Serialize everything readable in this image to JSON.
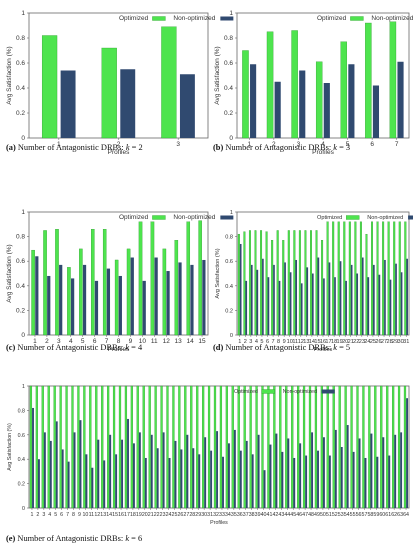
{
  "captions": [
    {
      "label": "(a)",
      "text": "Number of Antagonistic DRBs:",
      "kvar": "k",
      "kval": "= 2"
    },
    {
      "label": "(b)",
      "text": "Number of Antagonistic DRBs:",
      "kvar": "k",
      "kval": "= 3"
    },
    {
      "label": "(c)",
      "text": "Number of Antagonistic DRBs:",
      "kvar": "k",
      "kval": "= 4"
    },
    {
      "label": "(d)",
      "text": "Number of Antagonistic DRBs:",
      "kvar": "k",
      "kval": "= 5"
    },
    {
      "label": "(e)",
      "text": "Number of Antagonistic DRBs:",
      "kvar": "k",
      "kval": "= 6"
    }
  ],
  "colors": {
    "optimized": "#4ee44e",
    "optimized_edge": "#1e8c1e",
    "non_optimized": "#304a70",
    "axis": "#666666",
    "grid": "#dddddd",
    "text": "#333333"
  },
  "chart_data": [
    {
      "type": "bar",
      "xlabel": "Profiles",
      "ylabel": "Avg Satisfaction (%)",
      "ylim": [
        0,
        1
      ],
      "yticks": [
        "0",
        "0.2",
        "0.4",
        "0.6",
        "0.8",
        "1"
      ],
      "grid": false,
      "legend_position": "top-right",
      "categories": [
        "1",
        "2",
        "3"
      ],
      "series": [
        {
          "name": "Optimized",
          "values": [
            0.82,
            0.72,
            0.89
          ]
        },
        {
          "name": "Non-optimized",
          "values": [
            0.54,
            0.55,
            0.51
          ]
        }
      ]
    },
    {
      "type": "bar",
      "xlabel": "Profiles",
      "ylabel": "Avg Satisfaction (%)",
      "ylim": [
        0,
        1
      ],
      "yticks": [
        "0",
        "0.2",
        "0.4",
        "0.6",
        "0.8",
        "1"
      ],
      "grid": false,
      "legend_position": "top-right",
      "categories": [
        "1",
        "2",
        "3",
        "4",
        "5",
        "6",
        "7"
      ],
      "series": [
        {
          "name": "Optimized",
          "values": [
            0.7,
            0.85,
            0.86,
            0.61,
            0.77,
            0.92,
            0.93
          ]
        },
        {
          "name": "Non-optimized",
          "values": [
            0.59,
            0.45,
            0.54,
            0.44,
            0.59,
            0.42,
            0.61
          ]
        }
      ]
    },
    {
      "type": "bar",
      "xlabel": "Profiles",
      "ylabel": "Avg Satisfaction (%)",
      "ylim": [
        0,
        1
      ],
      "yticks": [
        "0",
        "0.2",
        "0.4",
        "0.6",
        "0.8",
        "1"
      ],
      "grid": false,
      "legend_position": "top-right",
      "categories": [
        "1",
        "2",
        "3",
        "4",
        "5",
        "6",
        "7",
        "8",
        "9",
        "10",
        "11",
        "12",
        "13",
        "14",
        "15"
      ],
      "series": [
        {
          "name": "Optimized",
          "values": [
            0.69,
            0.85,
            0.86,
            0.55,
            0.7,
            0.86,
            0.86,
            0.61,
            0.7,
            0.92,
            0.92,
            0.7,
            0.77,
            0.92,
            0.93
          ]
        },
        {
          "name": "Non-optimized",
          "values": [
            0.64,
            0.48,
            0.57,
            0.46,
            0.57,
            0.44,
            0.54,
            0.48,
            0.63,
            0.44,
            0.63,
            0.52,
            0.59,
            0.57,
            0.61
          ]
        }
      ]
    },
    {
      "type": "bar",
      "xlabel": "Profiles",
      "ylabel": "Avg Satisfaction (%)",
      "ylim": [
        0,
        1
      ],
      "yticks": [
        "0",
        "0.2",
        "0.4",
        "0.6",
        "0.8",
        "1"
      ],
      "grid": false,
      "legend_position": "top-right",
      "categories": [
        "1",
        "2",
        "3",
        "4",
        "5",
        "6",
        "7",
        "8",
        "9",
        "10",
        "11",
        "12",
        "13",
        "14",
        "15",
        "16",
        "17",
        "18",
        "19",
        "20",
        "21",
        "22",
        "23",
        "24",
        "25",
        "26",
        "27",
        "28",
        "29",
        "30",
        "31"
      ],
      "series": [
        {
          "name": "Optimized",
          "values": [
            0.82,
            0.84,
            0.85,
            0.85,
            0.85,
            0.84,
            0.77,
            0.85,
            0.77,
            0.85,
            0.85,
            0.85,
            0.85,
            0.85,
            0.85,
            0.77,
            0.92,
            0.92,
            0.92,
            0.92,
            0.92,
            0.92,
            0.92,
            0.82,
            0.92,
            0.92,
            0.92,
            0.92,
            0.92,
            0.92,
            0.92
          ]
        },
        {
          "name": "Non-optimized",
          "values": [
            0.74,
            0.44,
            0.57,
            0.53,
            0.62,
            0.47,
            0.57,
            0.44,
            0.59,
            0.51,
            0.61,
            0.42,
            0.55,
            0.5,
            0.63,
            0.46,
            0.59,
            0.47,
            0.6,
            0.44,
            0.57,
            0.5,
            0.63,
            0.47,
            0.57,
            0.49,
            0.61,
            0.45,
            0.58,
            0.51,
            0.62
          ]
        }
      ]
    },
    {
      "type": "bar",
      "xlabel": "Profiles",
      "ylabel": "Avg Satisfaction (%)",
      "ylim": [
        0,
        1
      ],
      "yticks": [
        "0",
        "0.2",
        "0.4",
        "0.6",
        "0.8",
        "1"
      ],
      "grid": false,
      "legend_position": "top-right",
      "categories": [
        "1",
        "2",
        "3",
        "4",
        "5",
        "6",
        "7",
        "8",
        "9",
        "10",
        "11",
        "12",
        "13",
        "14",
        "15",
        "16",
        "17",
        "18",
        "19",
        "20",
        "21",
        "22",
        "23",
        "24",
        "25",
        "26",
        "27",
        "28",
        "29",
        "30",
        "31",
        "32",
        "33",
        "34",
        "35",
        "36",
        "37",
        "38",
        "39",
        "40",
        "41",
        "42",
        "43",
        "44",
        "45",
        "46",
        "47",
        "48",
        "49",
        "50",
        "51",
        "52",
        "53",
        "54",
        "55",
        "56",
        "57",
        "58",
        "59",
        "60",
        "61",
        "62",
        "63",
        "64"
      ],
      "series": [
        {
          "name": "Optimized",
          "values": [
            1,
            1,
            1,
            1,
            1,
            1,
            1,
            1,
            1,
            1,
            1,
            1,
            1,
            1,
            1,
            1,
            1,
            1,
            1,
            1,
            1,
            1,
            1,
            1,
            1,
            1,
            1,
            1,
            1,
            1,
            1,
            1,
            1,
            1,
            1,
            1,
            1,
            1,
            1,
            1,
            1,
            1,
            1,
            1,
            1,
            1,
            1,
            1,
            1,
            1,
            1,
            1,
            1,
            1,
            1,
            1,
            1,
            1,
            1,
            1,
            1,
            1,
            1,
            1
          ]
        },
        {
          "name": "Non-optimized",
          "values": [
            0.82,
            0.4,
            0.62,
            0.55,
            0.71,
            0.48,
            0.38,
            0.62,
            0.72,
            0.44,
            0.33,
            0.56,
            0.39,
            0.6,
            0.44,
            0.56,
            0.73,
            0.53,
            0.62,
            0.41,
            0.6,
            0.49,
            0.62,
            0.41,
            0.55,
            0.48,
            0.6,
            0.49,
            0.44,
            0.58,
            0.47,
            0.63,
            0.42,
            0.53,
            0.64,
            0.47,
            0.55,
            0.44,
            0.6,
            0.31,
            0.52,
            0.61,
            0.46,
            0.57,
            0.41,
            0.53,
            0.43,
            0.62,
            0.47,
            0.58,
            0.43,
            0.64,
            0.5,
            0.68,
            0.46,
            0.57,
            0.41,
            0.61,
            0.42,
            0.58,
            0.43,
            0.6,
            0.62,
            0.9
          ]
        }
      ]
    }
  ]
}
